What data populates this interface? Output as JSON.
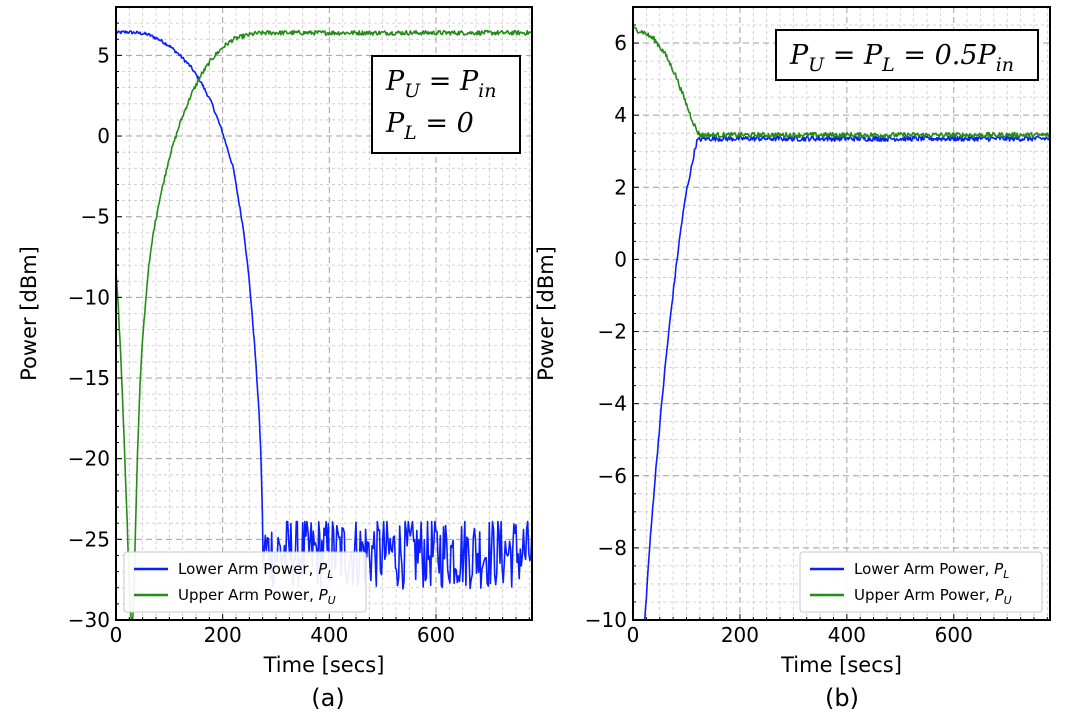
{
  "chart_data": [
    {
      "panel": "(a)",
      "type": "line",
      "xlabel": "Time [secs]",
      "ylabel": "Power [dBm]",
      "xlim": [
        0,
        780
      ],
      "ylim": [
        -30,
        8
      ],
      "xticks": [
        0,
        200,
        400,
        600
      ],
      "yticks": [
        -30,
        -25,
        -20,
        -15,
        -10,
        -5,
        0,
        5
      ],
      "x_minor_step": 25,
      "y_minor_step": 1,
      "grid": true,
      "legend_position": "lower-left",
      "annotation": {
        "lines": [
          [
            {
              "t": "P"
            },
            {
              "t": "U",
              "sub": true
            },
            {
              "t": " = P"
            },
            {
              "t": "in",
              "sub": true
            }
          ],
          [
            {
              "t": "P"
            },
            {
              "t": "L",
              "sub": true
            },
            {
              "t": " = 0"
            }
          ]
        ],
        "position": "top-right"
      },
      "series": [
        {
          "name": "Lower Arm Power, P_L",
          "legend": {
            "text": "Lower Arm Power, ",
            "sym": "P",
            "sub": "L"
          },
          "color": "#0a1eff",
          "noise": 0.1,
          "x": [
            0,
            20,
            40,
            60,
            80,
            100,
            120,
            140,
            160,
            180,
            200,
            220,
            240,
            250,
            260,
            268,
            272,
            275
          ],
          "y": [
            6.4,
            6.45,
            6.4,
            6.3,
            6.0,
            5.6,
            5.0,
            4.3,
            3.3,
            2.0,
            0.2,
            -2.0,
            -6.0,
            -9.0,
            -13.0,
            -17.0,
            -20.0,
            -24.2
          ],
          "noise_segment": {
            "x_start": 276,
            "x_end": 780,
            "step": 2,
            "center": -25.8,
            "amplitude": 2.3,
            "top": -23.9,
            "bottom": -28.2
          }
        },
        {
          "name": "Upper Arm Power, P_U",
          "legend": {
            "text": "Upper Arm Power, ",
            "sym": "P",
            "sub": "U"
          },
          "color": "#248c17",
          "noise": 0.14,
          "x": [
            0,
            4,
            8,
            12,
            16,
            20,
            24,
            28,
            30,
            32,
            36,
            40,
            45,
            50,
            60,
            70,
            80,
            100,
            120,
            140,
            160,
            180,
            200,
            220,
            240,
            260,
            280,
            300,
            320,
            350,
            400,
            500,
            600,
            700,
            780
          ],
          "y": [
            -8.5,
            -10.5,
            -13.0,
            -16.0,
            -19.5,
            -23.0,
            -27.0,
            -30.0,
            -30.0,
            -30.0,
            -25.0,
            -20.0,
            -15.5,
            -12.5,
            -8.5,
            -6.0,
            -4.2,
            -1.3,
            0.8,
            2.5,
            3.8,
            4.8,
            5.5,
            6.0,
            6.2,
            6.35,
            6.4,
            6.4,
            6.4,
            6.4,
            6.4,
            6.4,
            6.4,
            6.4,
            6.4
          ]
        }
      ]
    },
    {
      "panel": "(b)",
      "type": "line",
      "xlabel": "Time [secs]",
      "ylabel": "Power [dBm]",
      "xlim": [
        0,
        780
      ],
      "ylim": [
        -10,
        7
      ],
      "xticks": [
        0,
        200,
        400,
        600
      ],
      "yticks": [
        -10,
        -8,
        -6,
        -4,
        -2,
        0,
        2,
        4,
        6
      ],
      "x_minor_step": 25,
      "y_minor_step": 0.5,
      "grid": true,
      "legend_position": "lower-right",
      "annotation": {
        "lines": [
          [
            {
              "t": "P"
            },
            {
              "t": "U",
              "sub": true
            },
            {
              "t": " = P"
            },
            {
              "t": "L",
              "sub": true
            },
            {
              "t": " = 0.5P"
            },
            {
              "t": "in",
              "sub": true
            }
          ]
        ],
        "position": "top-right"
      },
      "series": [
        {
          "name": "Lower Arm Power, P_L",
          "legend": {
            "text": "Lower Arm Power, ",
            "sym": "P",
            "sub": "L"
          },
          "color": "#0a1eff",
          "noise": 0.07,
          "x": [
            22,
            30,
            40,
            50,
            60,
            70,
            80,
            90,
            100,
            110,
            115,
            120,
            130,
            150,
            200,
            300,
            400,
            500,
            600,
            700,
            780
          ],
          "y": [
            -10.0,
            -8.2,
            -6.3,
            -4.6,
            -3.0,
            -1.6,
            -0.3,
            0.9,
            1.9,
            2.6,
            3.0,
            3.3,
            3.35,
            3.35,
            3.35,
            3.35,
            3.35,
            3.35,
            3.35,
            3.35,
            3.35
          ]
        },
        {
          "name": "Upper Arm Power, P_U",
          "legend": {
            "text": "Upper Arm Power, ",
            "sym": "P",
            "sub": "U"
          },
          "color": "#248c17",
          "noise": 0.07,
          "x": [
            0,
            20,
            40,
            60,
            70,
            80,
            90,
            100,
            110,
            120,
            125,
            130,
            150,
            200,
            300,
            400,
            500,
            600,
            700,
            780
          ],
          "y": [
            6.4,
            6.3,
            6.1,
            5.7,
            5.4,
            5.1,
            4.7,
            4.3,
            3.9,
            3.55,
            3.45,
            3.45,
            3.45,
            3.45,
            3.45,
            3.45,
            3.45,
            3.45,
            3.45,
            3.45
          ]
        }
      ]
    }
  ]
}
